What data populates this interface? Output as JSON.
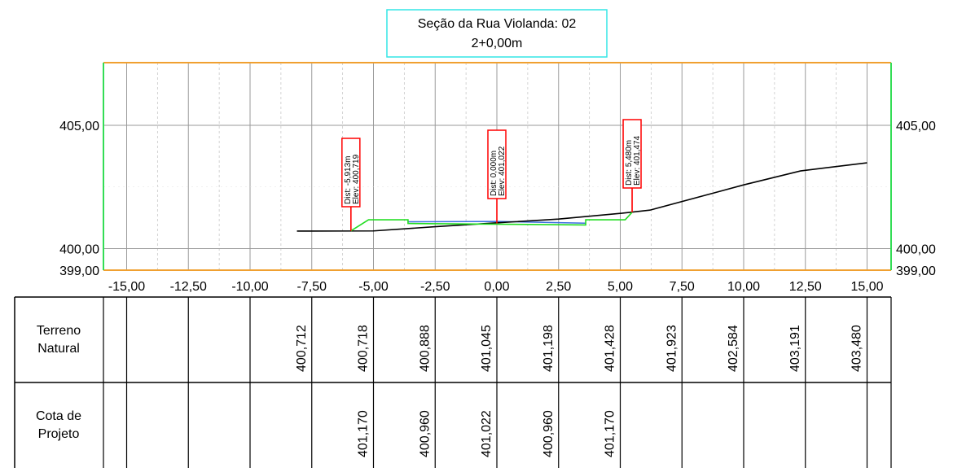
{
  "title": {
    "line1": "Seção da Rua Violanda: 02",
    "line2": "2+0,00m"
  },
  "chart_data": {
    "type": "cross-section",
    "x_ticks": [
      "-15,00",
      "-12,50",
      "-10,00",
      "-7,50",
      "-5,00",
      "-2,50",
      "0,00",
      "2,50",
      "5,00",
      "7,50",
      "10,00",
      "12,50",
      "15,00"
    ],
    "x_tick_values": [
      -15,
      -12.5,
      -10,
      -7.5,
      -5,
      -2.5,
      0,
      2.5,
      5,
      7.5,
      10,
      12.5,
      15
    ],
    "y_ticks": [
      "405,00",
      "400,00",
      "399,00"
    ],
    "y_tick_values": [
      405,
      400,
      399
    ],
    "xlim": [
      -16.2,
      16.2
    ],
    "ylim": [
      399,
      406.5
    ],
    "terrain": [
      {
        "x": -8.1,
        "y": 400.712
      },
      {
        "x": -5.0,
        "y": 400.718
      },
      {
        "x": -2.5,
        "y": 400.888
      },
      {
        "x": 0.0,
        "y": 401.045
      },
      {
        "x": 2.5,
        "y": 401.198
      },
      {
        "x": 5.0,
        "y": 401.428
      },
      {
        "x": 6.2,
        "y": 401.56
      },
      {
        "x": 10.0,
        "y": 402.584
      },
      {
        "x": 12.3,
        "y": 403.15
      },
      {
        "x": 15.0,
        "y": 403.48
      }
    ],
    "project": [
      {
        "x": -5.913,
        "y": 400.719
      },
      {
        "x": -5.2,
        "y": 401.17
      },
      {
        "x": -3.6,
        "y": 401.17
      },
      {
        "x": -3.6,
        "y": 401.02
      },
      {
        "x": 3.6,
        "y": 400.96
      },
      {
        "x": 3.6,
        "y": 401.17
      },
      {
        "x": 5.2,
        "y": 401.17
      },
      {
        "x": 5.48,
        "y": 401.474
      }
    ],
    "annotations": [
      {
        "x": -5.913,
        "y": 400.719,
        "dist": "Dist: -5,913m",
        "elev": "Elev: 400,719"
      },
      {
        "x": 0.0,
        "y": 401.022,
        "dist": "Dist: 0,000m",
        "elev": "Elev: 401,022"
      },
      {
        "x": 5.48,
        "y": 401.474,
        "dist": "Dist: 5,480m",
        "elev": "Elev: 401,474"
      }
    ],
    "table": {
      "rows": [
        {
          "label_line1": "Terreno",
          "label_line2": "Natural",
          "values": [
            "",
            "",
            "",
            "400,712",
            "400,718",
            "400,888",
            "401,045",
            "401,198",
            "401,428",
            "401,923",
            "402,584",
            "403,191",
            "403,480"
          ]
        },
        {
          "label_line1": "Cota de",
          "label_line2": "Projeto",
          "values": [
            "",
            "",
            "",
            "",
            "401,170",
            "400,960",
            "401,022",
            "400,960",
            "401,170",
            "",
            "",
            "",
            ""
          ]
        }
      ]
    }
  }
}
